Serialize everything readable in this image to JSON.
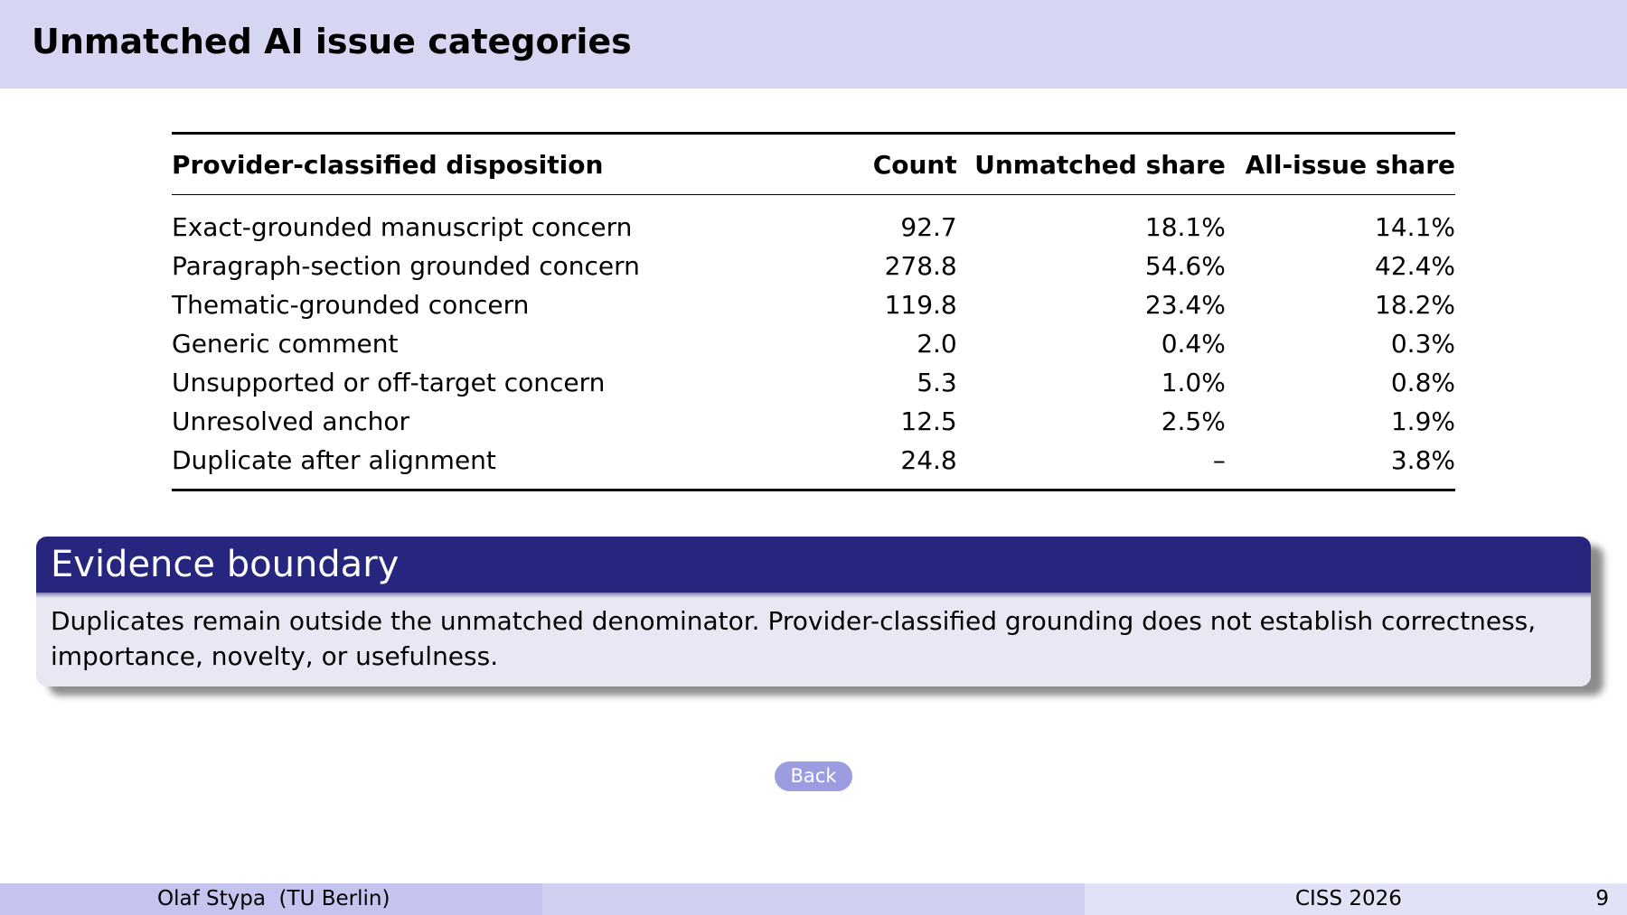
{
  "slide": {
    "title": "Unmatched AI issue categories"
  },
  "table": {
    "headers": [
      "Provider-classified disposition",
      "Count",
      "Unmatched share",
      "All-issue share"
    ],
    "rows": [
      [
        "Exact-grounded manuscript concern",
        "92.7",
        "18.1%",
        "14.1%"
      ],
      [
        "Paragraph-section grounded concern",
        "278.8",
        "54.6%",
        "42.4%"
      ],
      [
        "Thematic-grounded concern",
        "119.8",
        "23.4%",
        "18.2%"
      ],
      [
        "Generic comment",
        "2.0",
        "0.4%",
        "0.3%"
      ],
      [
        "Unsupported or off-target concern",
        "5.3",
        "1.0%",
        "0.8%"
      ],
      [
        "Unresolved anchor",
        "12.5",
        "2.5%",
        "1.9%"
      ],
      [
        "Duplicate after alignment",
        "24.8",
        "–",
        "3.8%"
      ]
    ]
  },
  "block": {
    "title": "Evidence boundary",
    "body": "Duplicates remain outside the unmatched denominator.  Provider-classified grounding does not establish correctness, importance, novelty, or usefulness."
  },
  "nav": {
    "back_label": "Back"
  },
  "footer": {
    "author": "Olaf Stypa  (TU Berlin)",
    "conference": "CISS 2026",
    "page": "9"
  },
  "colors": {
    "title_bar": "#d6d6f2",
    "block_title": "#26267f",
    "block_body": "#e8e8f4",
    "back_button": "#9c9ce0"
  }
}
